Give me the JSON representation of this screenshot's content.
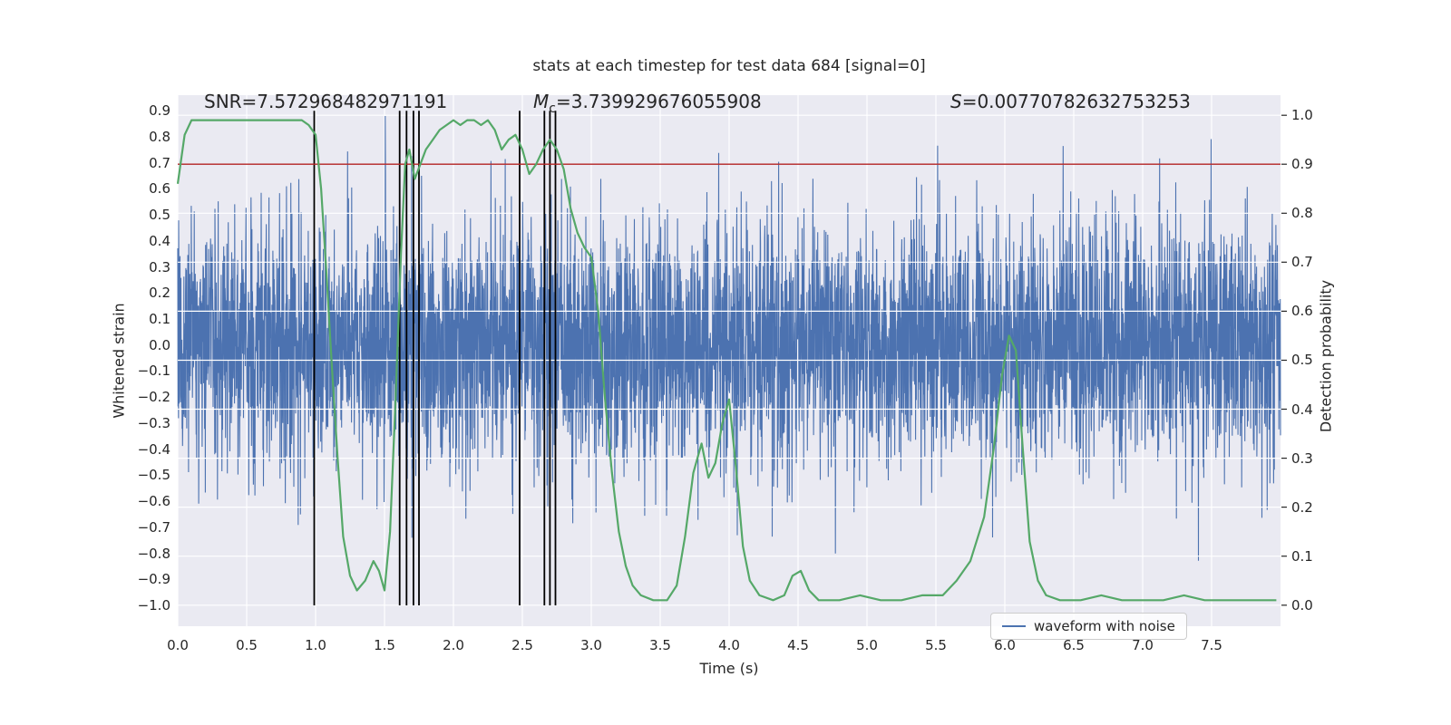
{
  "chart_data": {
    "type": "line",
    "title": "stats at each timestep for test data 684 [signal=0]",
    "xlabel": "Time (s)",
    "ylabel_left": "Whitened strain",
    "ylabel_right": "Detection probability",
    "xlim": [
      0,
      8
    ],
    "ylim_left": [
      -1.08,
      0.96
    ],
    "ylim_right": [
      -0.043,
      1.041
    ],
    "x_ticks": [
      0.0,
      0.5,
      1.0,
      1.5,
      2.0,
      2.5,
      3.0,
      3.5,
      4.0,
      4.5,
      5.0,
      5.5,
      6.0,
      6.5,
      7.0,
      7.5
    ],
    "y_ticks_left": [
      0.9,
      0.8,
      0.7,
      0.6,
      0.5,
      0.4,
      0.3,
      0.2,
      0.1,
      0.0,
      -0.1,
      -0.2,
      -0.3,
      -0.4,
      -0.5,
      -0.6,
      -0.7,
      -0.8,
      -0.9,
      -1.0
    ],
    "y_ticks_right": [
      1.0,
      0.9,
      0.8,
      0.7,
      0.6,
      0.5,
      0.4,
      0.3,
      0.2,
      0.1,
      0.0
    ],
    "grid": true,
    "background": "#eaeaf2",
    "grid_color": "#ffffff",
    "text_color": "#262626",
    "annotations": {
      "snr": {
        "text": "SNR=7.572968482971191"
      },
      "chirp_mass": {
        "symbol": "M",
        "subscript": "c",
        "rest": "=3.739929676055908"
      },
      "statistic": {
        "symbol": "S",
        "rest": "=0.00770782632753253"
      }
    },
    "threshold": {
      "axis": "right",
      "y": 0.9,
      "color": "#b22222"
    },
    "event_lines": {
      "color": "#000000",
      "x": [
        0.99,
        1.61,
        1.66,
        1.71,
        1.75,
        2.48,
        2.66,
        2.7,
        2.74
      ],
      "y_range_left_axis": [
        -1.0,
        0.9
      ]
    },
    "series": [
      {
        "name": "waveform with noise",
        "kind": "gaussian-noise",
        "axis": "left",
        "color": "#4C72B0",
        "seed": 684,
        "n": 4800,
        "sigma": 0.24,
        "clip": [
          -1.0,
          0.88
        ]
      },
      {
        "name": "detection probability",
        "kind": "line",
        "axis": "right",
        "color": "#55A868",
        "points": [
          [
            0.0,
            0.86
          ],
          [
            0.05,
            0.96
          ],
          [
            0.1,
            0.99
          ],
          [
            0.2,
            0.99
          ],
          [
            0.3,
            0.99
          ],
          [
            0.4,
            0.99
          ],
          [
            0.5,
            0.99
          ],
          [
            0.6,
            0.99
          ],
          [
            0.7,
            0.99
          ],
          [
            0.8,
            0.99
          ],
          [
            0.9,
            0.99
          ],
          [
            0.95,
            0.98
          ],
          [
            1.0,
            0.96
          ],
          [
            1.04,
            0.85
          ],
          [
            1.08,
            0.67
          ],
          [
            1.12,
            0.48
          ],
          [
            1.16,
            0.3
          ],
          [
            1.2,
            0.14
          ],
          [
            1.25,
            0.06
          ],
          [
            1.3,
            0.03
          ],
          [
            1.36,
            0.05
          ],
          [
            1.42,
            0.09
          ],
          [
            1.46,
            0.07
          ],
          [
            1.5,
            0.03
          ],
          [
            1.54,
            0.15
          ],
          [
            1.58,
            0.42
          ],
          [
            1.62,
            0.72
          ],
          [
            1.65,
            0.9
          ],
          [
            1.68,
            0.93
          ],
          [
            1.72,
            0.87
          ],
          [
            1.76,
            0.9
          ],
          [
            1.8,
            0.93
          ],
          [
            1.85,
            0.95
          ],
          [
            1.9,
            0.97
          ],
          [
            1.95,
            0.98
          ],
          [
            2.0,
            0.99
          ],
          [
            2.05,
            0.98
          ],
          [
            2.1,
            0.99
          ],
          [
            2.15,
            0.99
          ],
          [
            2.2,
            0.98
          ],
          [
            2.25,
            0.99
          ],
          [
            2.3,
            0.97
          ],
          [
            2.35,
            0.93
          ],
          [
            2.4,
            0.95
          ],
          [
            2.45,
            0.96
          ],
          [
            2.5,
            0.93
          ],
          [
            2.55,
            0.88
          ],
          [
            2.6,
            0.9
          ],
          [
            2.65,
            0.93
          ],
          [
            2.7,
            0.95
          ],
          [
            2.75,
            0.93
          ],
          [
            2.8,
            0.89
          ],
          [
            2.85,
            0.81
          ],
          [
            2.9,
            0.76
          ],
          [
            2.95,
            0.73
          ],
          [
            3.0,
            0.71
          ],
          [
            3.05,
            0.6
          ],
          [
            3.1,
            0.42
          ],
          [
            3.15,
            0.27
          ],
          [
            3.2,
            0.15
          ],
          [
            3.25,
            0.08
          ],
          [
            3.3,
            0.04
          ],
          [
            3.36,
            0.02
          ],
          [
            3.45,
            0.01
          ],
          [
            3.55,
            0.01
          ],
          [
            3.62,
            0.04
          ],
          [
            3.68,
            0.14
          ],
          [
            3.74,
            0.27
          ],
          [
            3.8,
            0.33
          ],
          [
            3.85,
            0.26
          ],
          [
            3.9,
            0.29
          ],
          [
            3.95,
            0.37
          ],
          [
            4.0,
            0.42
          ],
          [
            4.05,
            0.28
          ],
          [
            4.1,
            0.12
          ],
          [
            4.15,
            0.05
          ],
          [
            4.22,
            0.02
          ],
          [
            4.32,
            0.01
          ],
          [
            4.4,
            0.02
          ],
          [
            4.46,
            0.06
          ],
          [
            4.52,
            0.07
          ],
          [
            4.58,
            0.03
          ],
          [
            4.65,
            0.01
          ],
          [
            4.8,
            0.01
          ],
          [
            4.95,
            0.02
          ],
          [
            5.1,
            0.01
          ],
          [
            5.25,
            0.01
          ],
          [
            5.4,
            0.02
          ],
          [
            5.55,
            0.02
          ],
          [
            5.65,
            0.05
          ],
          [
            5.75,
            0.09
          ],
          [
            5.85,
            0.18
          ],
          [
            5.92,
            0.32
          ],
          [
            5.98,
            0.47
          ],
          [
            6.03,
            0.55
          ],
          [
            6.08,
            0.52
          ],
          [
            6.13,
            0.32
          ],
          [
            6.18,
            0.13
          ],
          [
            6.24,
            0.05
          ],
          [
            6.3,
            0.02
          ],
          [
            6.4,
            0.01
          ],
          [
            6.55,
            0.01
          ],
          [
            6.7,
            0.02
          ],
          [
            6.85,
            0.01
          ],
          [
            7.0,
            0.01
          ],
          [
            7.15,
            0.01
          ],
          [
            7.3,
            0.02
          ],
          [
            7.45,
            0.01
          ],
          [
            7.6,
            0.01
          ],
          [
            7.75,
            0.01
          ],
          [
            7.9,
            0.01
          ],
          [
            7.97,
            0.01
          ]
        ]
      }
    ],
    "legend": {
      "labels": [
        "waveform with noise"
      ],
      "loc": "lower right"
    }
  }
}
